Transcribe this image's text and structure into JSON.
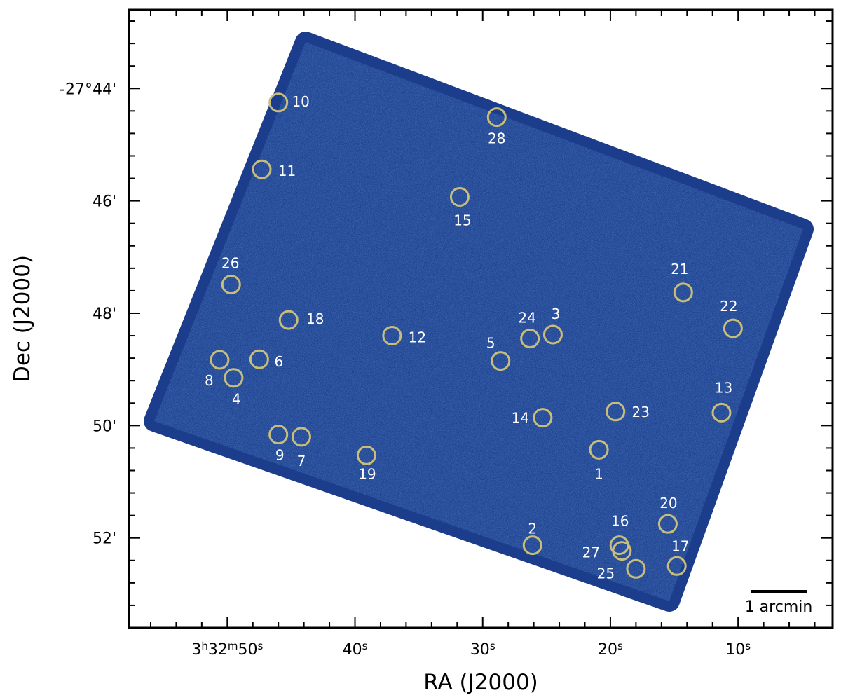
{
  "chart_data": {
    "type": "scatter",
    "title": "",
    "xlabel": "RA (J2000)",
    "ylabel": "Dec (J2000)",
    "x_ticks": [
      {
        "base": "3",
        "sup1": "h",
        "mid": "32",
        "sup2": "m",
        "tail": "50",
        "sup3": "s"
      },
      {
        "base": "",
        "sup1": "",
        "mid": "",
        "sup2": "",
        "tail": "40",
        "sup3": "s"
      },
      {
        "base": "",
        "sup1": "",
        "mid": "",
        "sup2": "",
        "tail": "30",
        "sup3": "s"
      },
      {
        "base": "",
        "sup1": "",
        "mid": "",
        "sup2": "",
        "tail": "20",
        "sup3": "s"
      },
      {
        "base": "",
        "sup1": "",
        "mid": "",
        "sup2": "",
        "tail": "10",
        "sup3": "s"
      }
    ],
    "x_tick_values_sec": [
      50,
      40,
      30,
      20,
      10
    ],
    "y_tick_labels": [
      "-27°44'",
      "46'",
      "48'",
      "50'",
      "52'"
    ],
    "y_tick_values_arcmin": [
      44,
      46,
      48,
      50,
      52
    ],
    "xlim_sec": [
      57.7,
      2.6
    ],
    "ylim_arcmin": [
      42.6,
      53.6
    ],
    "image_color": "#1c3c8c",
    "marker_color": "#c8bd7a",
    "label_color": "#ffffff",
    "scale_bar_label": "1 arcmin",
    "sources": [
      {
        "id": "1",
        "ra_s": 20.9,
        "dec_m": 50.43
      },
      {
        "id": "2",
        "ra_s": 26.1,
        "dec_m": 52.13
      },
      {
        "id": "3",
        "ra_s": 24.5,
        "dec_m": 48.38
      },
      {
        "id": "4",
        "ra_s": 49.5,
        "dec_m": 49.15
      },
      {
        "id": "5",
        "ra_s": 28.6,
        "dec_m": 48.85
      },
      {
        "id": "6",
        "ra_s": 47.5,
        "dec_m": 48.82
      },
      {
        "id": "7",
        "ra_s": 44.2,
        "dec_m": 50.2
      },
      {
        "id": "8",
        "ra_s": 50.6,
        "dec_m": 48.83
      },
      {
        "id": "9",
        "ra_s": 46.0,
        "dec_m": 50.16
      },
      {
        "id": "10",
        "ra_s": 46.0,
        "dec_m": 44.25
      },
      {
        "id": "11",
        "ra_s": 47.3,
        "dec_m": 45.44
      },
      {
        "id": "12",
        "ra_s": 37.1,
        "dec_m": 48.4
      },
      {
        "id": "13",
        "ra_s": 11.3,
        "dec_m": 49.77
      },
      {
        "id": "14",
        "ra_s": 25.3,
        "dec_m": 49.86
      },
      {
        "id": "15",
        "ra_s": 31.8,
        "dec_m": 45.93
      },
      {
        "id": "16",
        "ra_s": 19.3,
        "dec_m": 52.13
      },
      {
        "id": "17",
        "ra_s": 14.8,
        "dec_m": 52.5
      },
      {
        "id": "18",
        "ra_s": 45.2,
        "dec_m": 48.12
      },
      {
        "id": "19",
        "ra_s": 39.1,
        "dec_m": 50.53
      },
      {
        "id": "20",
        "ra_s": 15.5,
        "dec_m": 51.75
      },
      {
        "id": "21",
        "ra_s": 14.3,
        "dec_m": 47.63
      },
      {
        "id": "22",
        "ra_s": 10.4,
        "dec_m": 48.27
      },
      {
        "id": "23",
        "ra_s": 19.6,
        "dec_m": 49.75
      },
      {
        "id": "24",
        "ra_s": 26.3,
        "dec_m": 48.45
      },
      {
        "id": "25",
        "ra_s": 18.0,
        "dec_m": 52.55
      },
      {
        "id": "26",
        "ra_s": 49.7,
        "dec_m": 47.49
      },
      {
        "id": "27",
        "ra_s": 19.1,
        "dec_m": 52.23
      },
      {
        "id": "28",
        "ra_s": 28.9,
        "dec_m": 44.51
      }
    ]
  }
}
